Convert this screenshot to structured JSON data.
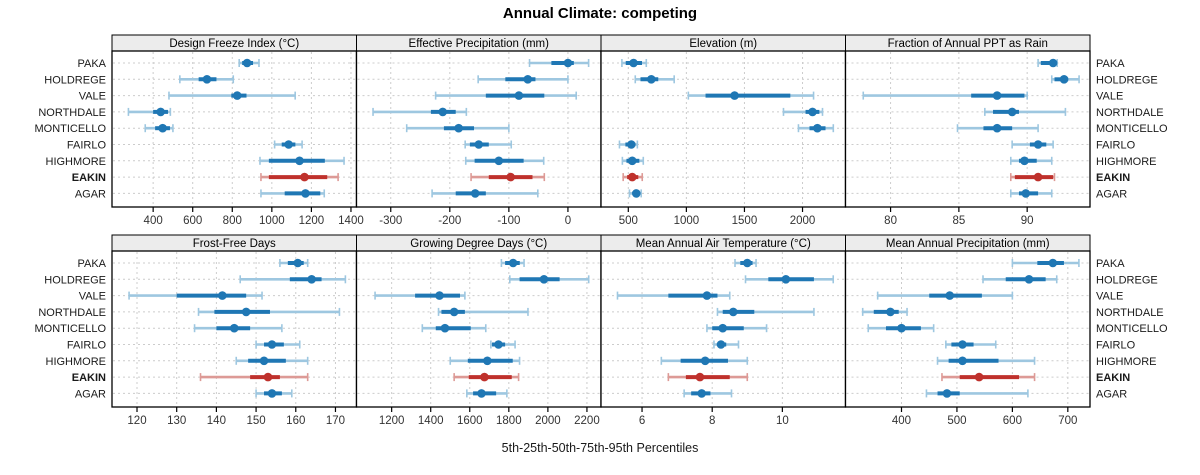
{
  "chart_data": {
    "type": "dotplot-lattice",
    "title": "Annual Climate: competing",
    "caption": "5th-25th-50th-75th-95th Percentiles",
    "percentile_labels": [
      "5th",
      "25th",
      "50th",
      "75th",
      "95th"
    ],
    "categories": [
      "PAKA",
      "HOLDREGE",
      "VALE",
      "NORTHDALE",
      "MONTICELLO",
      "FAIRLO",
      "HIGHMORE",
      "EAKIN",
      "AGAR"
    ],
    "highlight_category": "EAKIN",
    "legend_position": "none",
    "grid": true,
    "colors": {
      "normal": "#1f77b4",
      "normal_light": "#9ec7e0",
      "highlight": "#bf312c",
      "highlight_light": "#dd9a96",
      "grid_line": "#cccccc",
      "strip_bg": "#ececec",
      "border": "#000000",
      "tick_label": "#333333"
    },
    "panels": [
      {
        "title": "Design Freeze Index (°C)",
        "grid_row": 0,
        "grid_col": 0,
        "xlim": [
          192,
          1428
        ],
        "ticks": [
          400,
          600,
          800,
          1000,
          1200,
          1400
        ],
        "values": [
          [
            835,
            850,
            875,
            905,
            935
          ],
          [
            535,
            630,
            672,
            720,
            805
          ],
          [
            480,
            795,
            825,
            872,
            1118
          ],
          [
            275,
            400,
            438,
            475,
            487
          ],
          [
            360,
            410,
            448,
            485,
            500
          ],
          [
            1014,
            1050,
            1085,
            1119,
            1153
          ],
          [
            940,
            985,
            1140,
            1268,
            1365
          ],
          [
            945,
            985,
            1165,
            1280,
            1335
          ],
          [
            945,
            1065,
            1170,
            1245,
            1265
          ]
        ]
      },
      {
        "title": "Effective Precipitation (mm)",
        "grid_row": 0,
        "grid_col": 1,
        "xlim": [
          -358,
          56
        ],
        "ticks": [
          -300,
          -200,
          -100,
          0
        ],
        "values": [
          [
            -65,
            -28,
            0,
            10,
            35
          ],
          [
            -152,
            -106,
            -68,
            -55,
            0
          ],
          [
            -224,
            -139,
            -83,
            -40,
            14
          ],
          [
            -330,
            -232,
            -212,
            -190,
            -172
          ],
          [
            -273,
            -210,
            -185,
            -159,
            -100
          ],
          [
            -174,
            -166,
            -151,
            -134,
            -96
          ],
          [
            -173,
            -158,
            -117,
            -75,
            -41
          ],
          [
            -164,
            -134,
            -97,
            -60,
            -40
          ],
          [
            -230,
            -190,
            -157,
            -139,
            -51
          ]
        ]
      },
      {
        "title": "Elevation (m)",
        "grid_row": 0,
        "grid_col": 2,
        "xlim": [
          265,
          2370
        ],
        "ticks": [
          500,
          1000,
          1500,
          2000
        ],
        "values": [
          [
            445,
            478,
            545,
            618,
            655
          ],
          [
            560,
            605,
            698,
            758,
            895
          ],
          [
            1017,
            1165,
            1415,
            1895,
            2095
          ],
          [
            1836,
            2026,
            2086,
            2145,
            2172
          ],
          [
            1965,
            2060,
            2128,
            2198,
            2265
          ],
          [
            424,
            475,
            526,
            560,
            578
          ],
          [
            449,
            484,
            534,
            595,
            629
          ],
          [
            456,
            490,
            534,
            586,
            620
          ],
          [
            510,
            535,
            569,
            595,
            611
          ]
        ]
      },
      {
        "title": "Fraction of Annual PPT as Rain",
        "grid_row": 0,
        "grid_col": 3,
        "xlim": [
          76.7,
          94.6
        ],
        "ticks": [
          80,
          85,
          90
        ],
        "values": [
          [
            90.8,
            91.0,
            91.9,
            92.1,
            92.2
          ],
          [
            91.8,
            92.0,
            92.7,
            93.0,
            93.8
          ],
          [
            78.0,
            85.9,
            87.8,
            89.8,
            90.0
          ],
          [
            86.9,
            87.5,
            88.9,
            89.4,
            92.8
          ],
          [
            84.9,
            86.8,
            87.8,
            88.9,
            90.8
          ],
          [
            88.9,
            90.2,
            90.8,
            91.4,
            91.9
          ],
          [
            88.8,
            89.4,
            89.8,
            90.7,
            91.8
          ],
          [
            88.8,
            89.1,
            90.8,
            91.9,
            92.0
          ],
          [
            88.8,
            89.4,
            89.9,
            90.8,
            91.8
          ]
        ]
      },
      {
        "title": "Frost-Free Days",
        "grid_row": 1,
        "grid_col": 0,
        "xlim": [
          113.7,
          175.3
        ],
        "ticks": [
          120,
          130,
          140,
          150,
          160,
          170
        ],
        "values": [
          [
            156,
            158,
            160.5,
            162,
            163
          ],
          [
            146,
            158.5,
            164,
            166.5,
            172.5
          ],
          [
            118,
            130,
            141.5,
            147.5,
            151.5
          ],
          [
            135.5,
            139.5,
            147.5,
            153.5,
            171
          ],
          [
            134.5,
            140,
            144.5,
            148.5,
            156.5
          ],
          [
            150,
            152,
            154,
            157,
            161
          ],
          [
            145,
            148,
            152,
            157.5,
            163
          ],
          [
            136,
            148.5,
            153,
            156,
            163
          ],
          [
            150,
            152,
            154,
            156.5,
            159
          ]
        ]
      },
      {
        "title": "Growing Degree Days (°C)",
        "grid_row": 1,
        "grid_col": 1,
        "xlim": [
          1020,
          2272
        ],
        "ticks": [
          1200,
          1400,
          1600,
          1800,
          2000,
          2200
        ],
        "values": [
          [
            1762,
            1781,
            1822,
            1856,
            1878
          ],
          [
            1805,
            1855,
            1980,
            2060,
            2209
          ],
          [
            1115,
            1320,
            1445,
            1550,
            1575
          ],
          [
            1440,
            1455,
            1520,
            1575,
            1898
          ],
          [
            1357,
            1426,
            1473,
            1605,
            1682
          ],
          [
            1708,
            1714,
            1747,
            1781,
            1832
          ],
          [
            1500,
            1590,
            1690,
            1820,
            1855
          ],
          [
            1520,
            1595,
            1675,
            1815,
            1850
          ],
          [
            1585,
            1617,
            1660,
            1735,
            1790
          ]
        ]
      },
      {
        "title": "Mean Annual Air Temperature (°C)",
        "grid_row": 1,
        "grid_col": 2,
        "xlim": [
          4.83,
          11.8
        ],
        "ticks": [
          6,
          8,
          10
        ],
        "values": [
          [
            8.65,
            8.8,
            9.0,
            9.15,
            9.25
          ],
          [
            8.95,
            9.6,
            10.1,
            10.9,
            11.45
          ],
          [
            5.3,
            6.75,
            7.85,
            8.15,
            8.5
          ],
          [
            8.15,
            8.3,
            8.6,
            9.2,
            10.9
          ],
          [
            7.85,
            8.0,
            8.3,
            8.9,
            9.55
          ],
          [
            8.05,
            8.15,
            8.25,
            8.4,
            8.75
          ],
          [
            6.55,
            7.1,
            7.8,
            8.45,
            9.0
          ],
          [
            6.75,
            7.25,
            7.65,
            8.5,
            9.0
          ],
          [
            7.2,
            7.4,
            7.7,
            7.95,
            8.55
          ]
        ]
      },
      {
        "title": "Mean Annual Precipitation (mm)",
        "grid_row": 1,
        "grid_col": 3,
        "xlim": [
          299,
          740
        ],
        "ticks": [
          400,
          500,
          600,
          700
        ],
        "values": [
          [
            600,
            645,
            673,
            693,
            720
          ],
          [
            547,
            588,
            630,
            660,
            680
          ],
          [
            357,
            450,
            487,
            545,
            600
          ],
          [
            330,
            350,
            380,
            395,
            410
          ],
          [
            340,
            372,
            400,
            435,
            458
          ],
          [
            480,
            490,
            510,
            530,
            570
          ],
          [
            465,
            485,
            510,
            575,
            640
          ],
          [
            473,
            505,
            540,
            612,
            640
          ],
          [
            445,
            465,
            482,
            505,
            628
          ]
        ]
      }
    ]
  }
}
